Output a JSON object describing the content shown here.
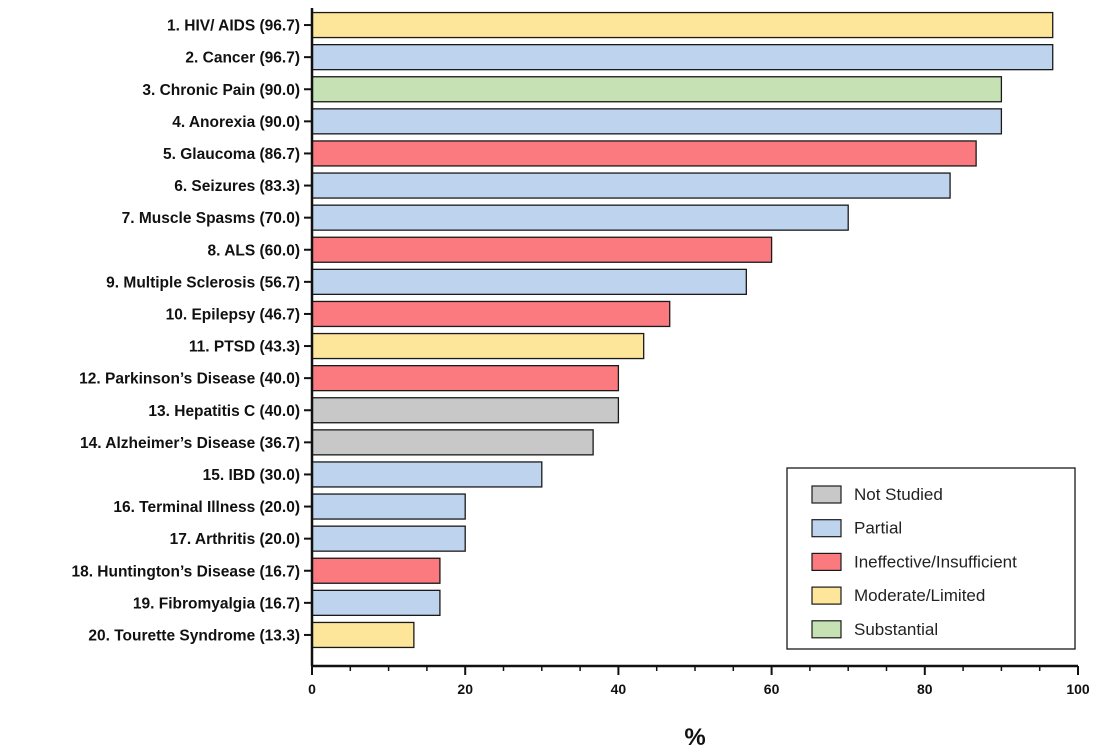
{
  "chart_data": {
    "type": "bar",
    "orientation": "horizontal",
    "xlabel": "%",
    "xlim": [
      0,
      100
    ],
    "xticks": [
      0,
      20,
      40,
      60,
      80,
      100
    ],
    "grid": false,
    "legend_position": "bottom-right",
    "categories": [
      "1. HIV/ AIDS (96.7)",
      "2. Cancer (96.7)",
      "3. Chronic Pain (90.0)",
      "4. Anorexia (90.0)",
      "5. Glaucoma (86.7)",
      "6. Seizures (83.3)",
      "7. Muscle Spasms (70.0)",
      "8. ALS (60.0)",
      "9. Multiple Sclerosis (56.7)",
      "10. Epilepsy (46.7)",
      "11. PTSD (43.3)",
      "12. Parkinson’s Disease (40.0)",
      "13. Hepatitis C (40.0)",
      "14. Alzheimer’s Disease (36.7)",
      "15. IBD (30.0)",
      "16. Terminal Illness (20.0)",
      "17. Arthritis (20.0)",
      "18. Huntington’s Disease (16.7)",
      "19. Fibromyalgia (16.7)",
      "20. Tourette Syndrome (13.3)"
    ],
    "values": [
      96.7,
      96.7,
      90.0,
      90.0,
      86.7,
      83.3,
      70.0,
      60.0,
      56.7,
      46.7,
      43.3,
      40.0,
      40.0,
      36.7,
      30.0,
      20.0,
      20.0,
      16.7,
      16.7,
      13.3
    ],
    "bar_evidence": [
      "Moderate/Limited",
      "Partial",
      "Substantial",
      "Partial",
      "Ineffective/Insufficient",
      "Partial",
      "Partial",
      "Ineffective/Insufficient",
      "Partial",
      "Ineffective/Insufficient",
      "Moderate/Limited",
      "Ineffective/Insufficient",
      "Not Studied",
      "Not Studied",
      "Partial",
      "Partial",
      "Partial",
      "Ineffective/Insufficient",
      "Partial",
      "Moderate/Limited"
    ],
    "legend": [
      {
        "label": "Not Studied",
        "color": "#c8c8c8"
      },
      {
        "label": "Partial",
        "color": "#bed3ee"
      },
      {
        "label": "Ineffective/Insufficient",
        "color": "#fa7a80"
      },
      {
        "label": "Moderate/Limited",
        "color": "#fde59a"
      },
      {
        "label": "Substantial",
        "color": "#c6e1b4"
      }
    ]
  }
}
